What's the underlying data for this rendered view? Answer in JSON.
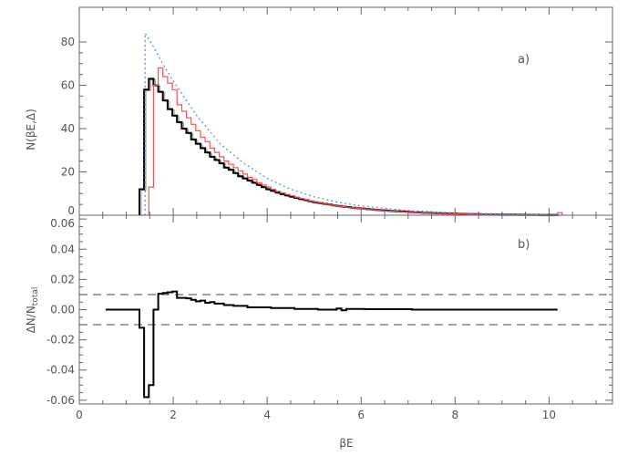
{
  "chart_data": [
    {
      "type": "line",
      "panel_label": "a)",
      "ylabel": "N(βE,Δ)",
      "xlim": [
        0,
        11.35
      ],
      "ylim": [
        0,
        96
      ],
      "yticks": [
        0,
        20,
        40,
        60,
        80
      ],
      "ytick_labels": [
        "0",
        "20",
        "40",
        "60",
        "80"
      ],
      "grid": false,
      "series": [
        {
          "style": "step",
          "color": "#000000",
          "bin_width": 0.1,
          "x_start": 1.28,
          "values": [
            12,
            58,
            63,
            60,
            57,
            53,
            49,
            46,
            43,
            40,
            38,
            35,
            33,
            31,
            29,
            27,
            25.5,
            24,
            22,
            21,
            19.5,
            18,
            17,
            16,
            15,
            14,
            13,
            12,
            11.3,
            10.5,
            9.8,
            9.2,
            8.6,
            8,
            7.5,
            7,
            6.5,
            6,
            5.7,
            5.3,
            5,
            4.6,
            4.3,
            4,
            3.8,
            3.5,
            3.3,
            3.1,
            2.9,
            2.7,
            2.5,
            2.3,
            2.2,
            2,
            1.9,
            1.8,
            1.7,
            1.5,
            1.4,
            1.3,
            1.2,
            1.1,
            1,
            0.95,
            0.9,
            0.85,
            0.8,
            0.7,
            0.65,
            0.6,
            0.55,
            0.5,
            0.47,
            0.44,
            0.4,
            0.37,
            0.35,
            0.32,
            0.3,
            0.28,
            0.26,
            0.24,
            0.22,
            0.2,
            0.19,
            0.18,
            0.17,
            0.16,
            0.15
          ]
        },
        {
          "style": "step",
          "color": "#ff5050",
          "bin_width": 0.1,
          "x_start": 1.48,
          "values": [
            13,
            60,
            68,
            64,
            61,
            58,
            51,
            48,
            45,
            42,
            39,
            36,
            34,
            31,
            29,
            27,
            25,
            23.5,
            22,
            20.5,
            19,
            17.5,
            16.5,
            15,
            14,
            13,
            12,
            11,
            10.3,
            9.6,
            9,
            8.4,
            7.8,
            7.2,
            6.7,
            6.2,
            5.8,
            5.4,
            5,
            4.6,
            4.3,
            4,
            3.7,
            3.4,
            3.2,
            3,
            2.8,
            2.6,
            2.4,
            2.2,
            2,
            1.9,
            1.8,
            1.6,
            1.5,
            1.4,
            1.3,
            1.2,
            1.1,
            1,
            0.9,
            0.85,
            0.8,
            0.7,
            0.65,
            0.6,
            0.55,
            0.5,
            0.45,
            0.42,
            0.4,
            0.37,
            0.34,
            0.31,
            0.29,
            0.27,
            0.25,
            0.23,
            0.21,
            0.2,
            0.18,
            0.17,
            0.16,
            0.15,
            0.14,
            0.13,
            0.12,
            1.2
          ]
        },
        {
          "style": "dotted",
          "color": "#4a90e8",
          "x": [
            1.4,
            1.4,
            1.6,
            1.8,
            2.0,
            2.5,
            3.0,
            3.5,
            4.0,
            4.5,
            5.0,
            5.5,
            6.0,
            7.0,
            8.0,
            9.0,
            10.0
          ],
          "y": [
            0,
            84,
            77,
            69,
            62,
            46,
            33,
            24,
            17,
            12,
            8.5,
            6,
            4.3,
            2.2,
            1.1,
            0.6,
            0.3
          ]
        }
      ]
    },
    {
      "type": "line",
      "panel_label": "b)",
      "xlabel": "βE",
      "ylabel": "ΔN/N",
      "ylabel_subscript": "total",
      "xlim": [
        0,
        11.35
      ],
      "ylim": [
        -0.0625,
        0.0625
      ],
      "xticks": [
        0,
        2,
        4,
        6,
        8,
        10
      ],
      "xtick_labels": [
        "0",
        "2",
        "4",
        "6",
        "8",
        "10"
      ],
      "yticks": [
        -0.06,
        -0.04,
        -0.02,
        0.0,
        0.02,
        0.04,
        0.06
      ],
      "ytick_labels": [
        "-0.06",
        "-0.04",
        "-0.02",
        "0.00",
        "0.02",
        "0.04",
        "0.06"
      ],
      "reference_lines": [
        0.01,
        -0.01
      ],
      "grid": false,
      "series": [
        {
          "style": "step",
          "color": "#000000",
          "x": [
            0.56,
            1.28,
            1.38,
            1.48,
            1.58,
            1.68,
            1.78,
            1.88,
            1.98,
            2.08,
            2.28,
            2.38,
            2.48,
            2.58,
            2.68,
            2.78,
            2.88,
            3.08,
            3.28,
            3.58,
            4.08,
            4.58,
            5.08,
            5.48,
            5.58,
            5.68,
            6.08,
            7.08
          ],
          "y": [
            0,
            -0.012,
            -0.058,
            -0.05,
            0,
            0.0105,
            0.011,
            0.0115,
            0.012,
            0.0078,
            0.0075,
            0.0065,
            0.0055,
            0.006,
            0.0045,
            0.005,
            0.004,
            0.003,
            0.0025,
            0.0015,
            0.001,
            0.0005,
            0,
            0.0008,
            -0.0005,
            0.0005,
            0.0003,
            0
          ],
          "x_end": 10.18
        }
      ]
    }
  ]
}
